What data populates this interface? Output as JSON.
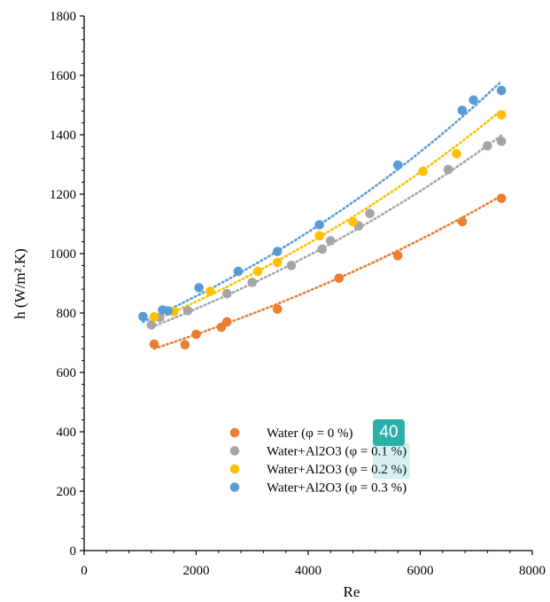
{
  "chart_data": {
    "type": "scatter",
    "xlabel": "Re",
    "ylabel": "h (W/m².K)",
    "xlim": [
      0,
      8000
    ],
    "ylim": [
      0,
      1800
    ],
    "xticks": [
      0,
      2000,
      4000,
      6000,
      8000
    ],
    "yticks": [
      0,
      200,
      400,
      600,
      800,
      1000,
      1200,
      1400,
      1600,
      1800
    ],
    "grid": false,
    "legend_position": "bottom-center",
    "trendlines": "dotted",
    "series": [
      {
        "name": "Water (φ = 0 %)",
        "color": "#ED7D31",
        "x": [
          1250,
          1800,
          2000,
          2450,
          2550,
          3450,
          4550,
          5600,
          6750,
          7450
        ],
        "y": [
          695,
          693,
          728,
          752,
          770,
          813,
          917,
          993,
          1108,
          1186
        ],
        "trend": [
          [
            1250,
            680
          ],
          [
            7450,
            1195
          ]
        ]
      },
      {
        "name": "Water+Al2O3 (φ = 0.1 %)",
        "color": "#A5A5A5",
        "x": [
          1200,
          1350,
          1850,
          2550,
          3000,
          3700,
          4250,
          4400,
          4900,
          5100,
          6500,
          7200,
          7450
        ],
        "y": [
          760,
          785,
          808,
          865,
          903,
          960,
          1015,
          1043,
          1093,
          1135,
          1283,
          1363,
          1378
        ],
        "trend": [
          [
            1200,
            752
          ],
          [
            7450,
            1398
          ]
        ]
      },
      {
        "name": "Water+Al2O3 (φ = 0.2 %)",
        "color": "#FFC000",
        "x": [
          1250,
          1600,
          2250,
          3100,
          3450,
          4200,
          4800,
          6050,
          6650,
          7450
        ],
        "y": [
          787,
          805,
          873,
          940,
          970,
          1060,
          1107,
          1277,
          1336,
          1467
        ],
        "trend": [
          [
            1250,
            775
          ],
          [
            7450,
            1483
          ]
        ]
      },
      {
        "name": "Water+Al2O3 (φ = 0.3 %)",
        "color": "#5B9BD5",
        "x": [
          1050,
          1400,
          1500,
          2050,
          2750,
          3450,
          4200,
          5600,
          6750,
          6950,
          7450
        ],
        "y": [
          788,
          810,
          807,
          885,
          940,
          1007,
          1097,
          1298,
          1482,
          1517,
          1549
        ],
        "trend": [
          [
            1050,
            770
          ],
          [
            7450,
            1580
          ]
        ]
      }
    ]
  },
  "overlay": {
    "badge_text": "40"
  }
}
